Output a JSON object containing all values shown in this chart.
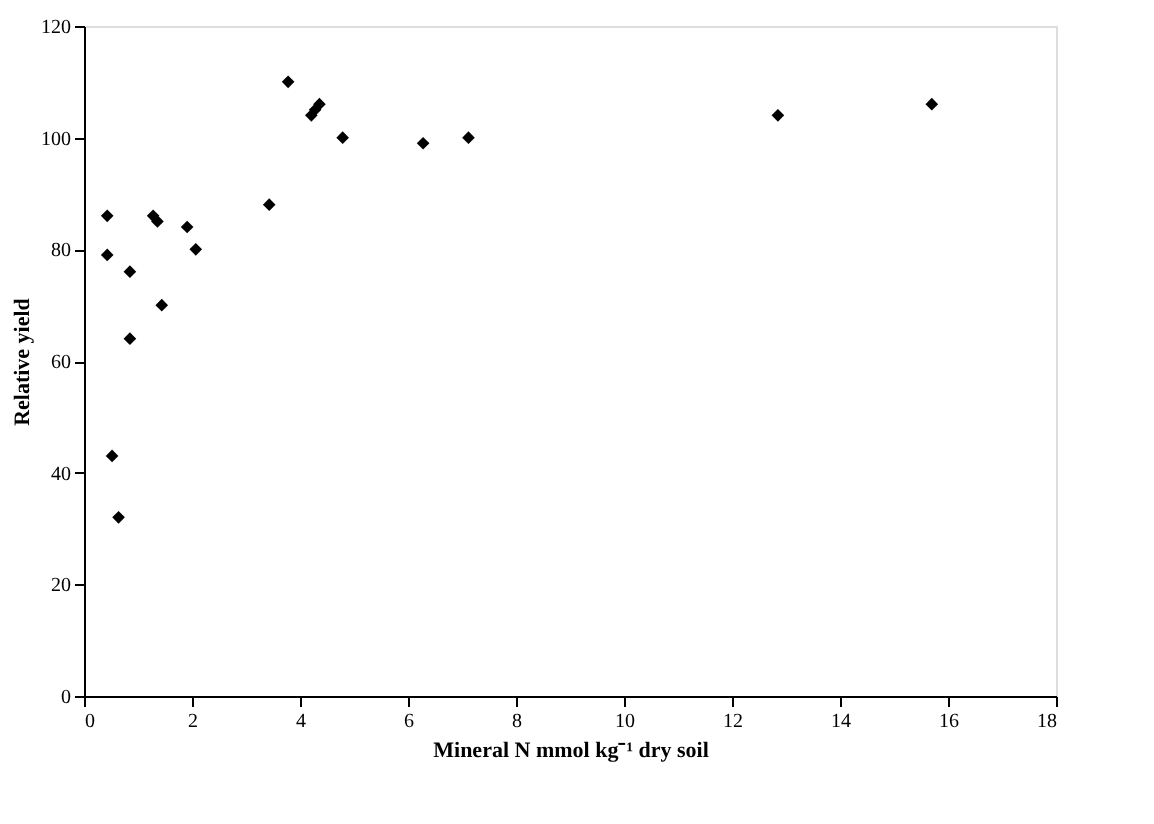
{
  "chart_data": {
    "type": "scatter",
    "xlabel": "Mineral N mmol kg⁻¹ dry soil",
    "ylabel": "Relative yield",
    "x": [
      0.43,
      0.43,
      0.52,
      0.64,
      0.85,
      0.85,
      1.28,
      1.36,
      1.44,
      1.91,
      2.07,
      3.43,
      3.78,
      4.21,
      4.28,
      4.36,
      4.79,
      6.28,
      7.12,
      12.85,
      15.7
    ],
    "series": [
      {
        "color": "#000000",
        "values": [
          86,
          79,
          43,
          32,
          76,
          64,
          86,
          85,
          70,
          84,
          80,
          88,
          110,
          104,
          105,
          106,
          100,
          99,
          100,
          104,
          106
        ]
      }
    ],
    "xlim": [
      0,
      18
    ],
    "xticks": [
      0,
      2,
      4,
      6,
      8,
      10,
      12,
      14,
      16,
      18
    ],
    "ylim": [
      0,
      120
    ],
    "yticks": [
      0,
      20,
      40,
      60,
      80,
      100,
      120
    ],
    "marker": "diamond",
    "grid": false,
    "legend": false
  }
}
